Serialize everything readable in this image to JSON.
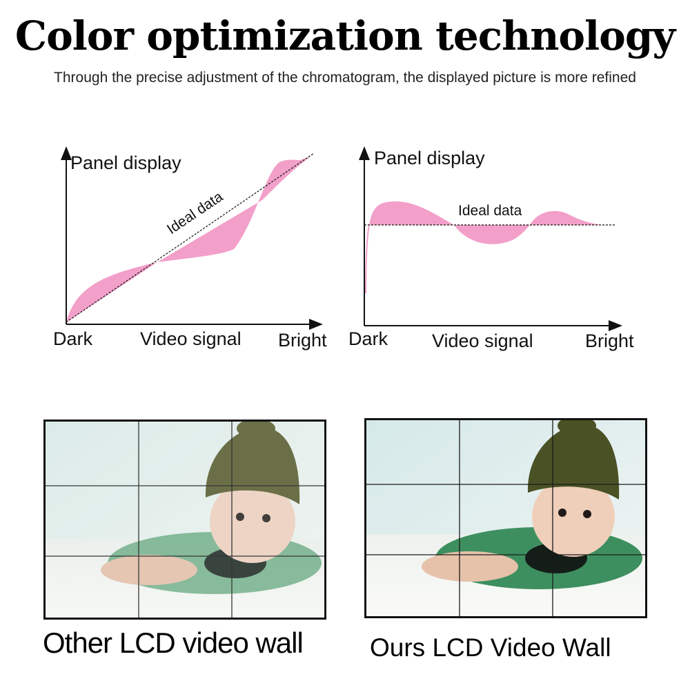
{
  "header": {
    "title": "Color optimization technology",
    "subtitle": "Through the precise adjustment of the chromatogram, the displayed picture is more refined"
  },
  "charts": {
    "left": {
      "ylabel": "Panel display",
      "xlabel": "Video signal",
      "x_start": "Dark",
      "x_end": "Bright",
      "reference_label": "Ideal data"
    },
    "right": {
      "ylabel": "Panel display",
      "xlabel": "Video signal",
      "x_start": "Dark",
      "x_end": "Bright",
      "reference_label": "Ideal data"
    }
  },
  "colors": {
    "deviation_fill": "#f29fc9",
    "axis": "#111111",
    "grid_line": "#1a1a1a"
  },
  "comparison": {
    "left_caption": "Other LCD video wall",
    "right_caption": "Ours LCD Video Wall",
    "grid": {
      "columns": 3,
      "rows": 3
    }
  }
}
